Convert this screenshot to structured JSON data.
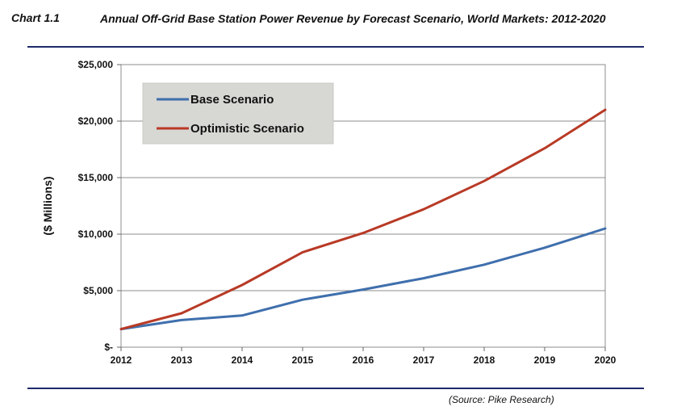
{
  "header": {
    "chart_number": "Chart 1.1",
    "title": "Annual Off-Grid Base Station Power Revenue by Forecast Scenario, World Markets: 2012-2020"
  },
  "footer": {
    "source": "(Source: Pike Research)"
  },
  "colors": {
    "base": "#3f6fad",
    "optimistic": "#b83a26",
    "grid": "#8c8c8c",
    "legend_bg": "#d7d7d4",
    "rule": "#1f2a6b"
  },
  "chart_data": {
    "type": "line",
    "title": "Annual Off-Grid Base Station Power Revenue by Forecast Scenario, World Markets: 2012-2020",
    "xlabel": "",
    "ylabel": "($ Millions)",
    "x": [
      "2012",
      "2013",
      "2014",
      "2015",
      "2016",
      "2017",
      "2018",
      "2019",
      "2020"
    ],
    "ylim": [
      0,
      25000
    ],
    "y_ticks": [
      0,
      5000,
      10000,
      15000,
      20000,
      25000
    ],
    "y_tick_labels": [
      "$-",
      "$5,000",
      "$10,000",
      "$15,000",
      "$20,000",
      "$25,000"
    ],
    "grid": true,
    "legend_position": "top-left",
    "series": [
      {
        "name": "Base Scenario",
        "values": [
          1600,
          2400,
          2800,
          4200,
          5100,
          6100,
          7300,
          8800,
          10500
        ]
      },
      {
        "name": "Optimistic Scenario",
        "values": [
          1600,
          3000,
          5500,
          8400,
          10100,
          12200,
          14700,
          17600,
          21000
        ]
      }
    ]
  }
}
